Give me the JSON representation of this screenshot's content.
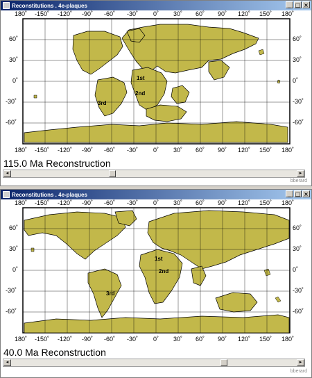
{
  "colors": {
    "land": "#c2b84a",
    "ocean": "#ffffff",
    "titlebar": "#0a246a"
  },
  "windows": [
    {
      "title": "Reconstitutions . 4e-plaques",
      "reconstruction_label": "115.0 Ma Reconstruction",
      "credit": "bberard",
      "slider_position": 0.35,
      "plate_labels": [
        "1st",
        "2nd",
        "3rd"
      ]
    },
    {
      "title": "Reconstitutions . 4e-plaques",
      "reconstruction_label": "40.0 Ma Reconstruction",
      "credit": "bberard",
      "slider_position": 0.75,
      "plate_labels": [
        "1st",
        "2nd",
        "3rd"
      ]
    }
  ],
  "map": {
    "lon_labels": [
      "180˚",
      "-150˚",
      "-120˚",
      "-90˚",
      "-60˚",
      "-30˚",
      "0˚",
      "30˚",
      "60˚",
      "90˚",
      "120˚",
      "150˚",
      "180˚"
    ],
    "lat_labels": [
      "60˚",
      "30˚",
      "0˚",
      "-30˚",
      "-60˚"
    ]
  },
  "titlebar_buttons": {
    "minimize": "_",
    "maximize": "□",
    "close": "×"
  },
  "scroll_arrows": {
    "left": "◂",
    "right": "▸"
  }
}
